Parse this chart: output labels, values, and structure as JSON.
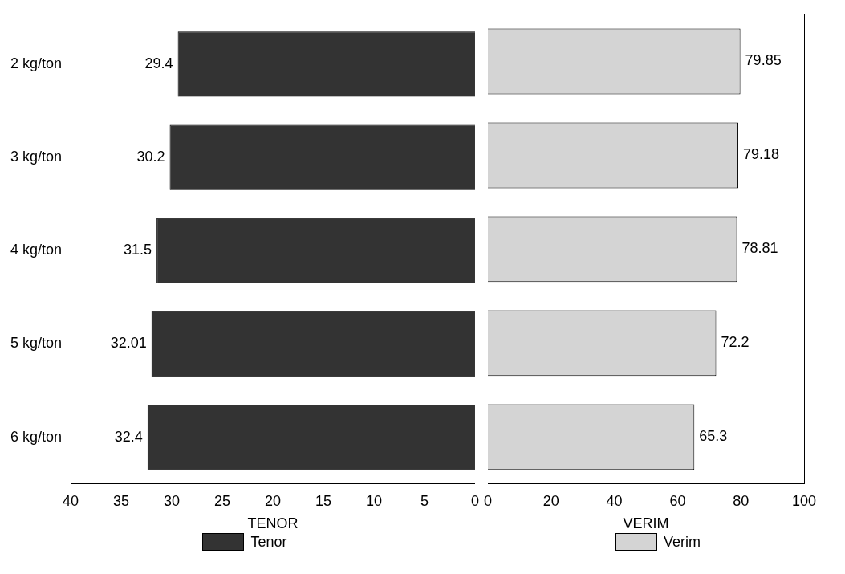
{
  "chart_data": [
    {
      "type": "bar",
      "orientation": "horizontal",
      "xlabel": "TENOR",
      "categories": [
        "2 kg/ton",
        "3 kg/ton",
        "4 kg/ton",
        "5 kg/ton",
        "6 kg/ton"
      ],
      "series": [
        {
          "name": "Tenor",
          "color": "#333333",
          "values": [
            29.4,
            30.2,
            31.5,
            32.01,
            32.4
          ]
        }
      ],
      "xlim": [
        40,
        0
      ],
      "xticks": [
        40,
        35,
        30,
        25,
        20,
        15,
        10,
        5,
        0
      ],
      "data_labels": true,
      "grid": false,
      "legend": "bottom"
    },
    {
      "type": "bar",
      "orientation": "horizontal",
      "xlabel": "VERIM",
      "categories": [
        null,
        null,
        null,
        null,
        null
      ],
      "series": [
        {
          "name": "Verim",
          "color": "#d4d4d4",
          "values": [
            79.85,
            79.18,
            78.81,
            72.2,
            65.3
          ]
        }
      ],
      "xlim": [
        0,
        100
      ],
      "xticks": [
        0,
        20,
        40,
        60,
        80,
        100
      ],
      "data_labels": true,
      "grid": false,
      "legend": "bottom",
      "tick_labels": "x"
    }
  ]
}
